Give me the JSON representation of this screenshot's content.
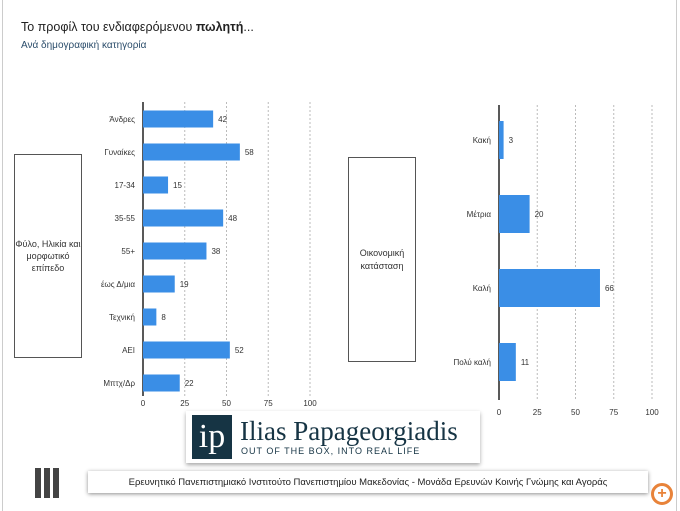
{
  "header": {
    "title_prefix": "Το προφίλ του ενδιαφερόμενου ",
    "title_bold": "πωλητή",
    "title_suffix": "...",
    "subtitle": "Ανά δημογραφική κατηγορία"
  },
  "chart_data": [
    {
      "type": "bar",
      "orientation": "horizontal",
      "group_label": "Φύλο, Ηλικία και μορφωτικό επίπεδο",
      "categories": [
        "Άνδρες",
        "Γυναίκες",
        "17-34",
        "35-55",
        "55+",
        "έως Δ/μια",
        "Τεχνική",
        "ΑΕΙ",
        "Μπτχ/Δρ"
      ],
      "values": [
        42,
        58,
        15,
        48,
        38,
        19,
        8,
        52,
        22
      ],
      "xlim": [
        0,
        100
      ],
      "xticks": [
        "0",
        "25",
        "50",
        "75",
        "100"
      ],
      "grid": true,
      "color": "#3a8ee6"
    },
    {
      "type": "bar",
      "orientation": "horizontal",
      "group_label": "Οικονομική κατάσταση",
      "categories": [
        "Κακή",
        "Μέτρια",
        "Καλή",
        "Πολύ καλή"
      ],
      "values": [
        3,
        20,
        66,
        11
      ],
      "xlim": [
        0,
        100
      ],
      "xticks": [
        "0",
        "25",
        "50",
        "75",
        "100"
      ],
      "grid": true,
      "color": "#3a8ee6"
    }
  ],
  "logo": {
    "mark": "ip",
    "name": "Ilias Papageorgiadis",
    "tagline": "OUT OF THE BOX, INTO REAL LIFE"
  },
  "footer": {
    "text": "Ερευνητικό Πανεπιστημιακό Ινστιτούτο Πανεπιστημίου Μακεδονίας - Μονάδα Ερευνών Κοινής Γνώμης και Αγοράς"
  },
  "icons": {
    "left": "bars-icon",
    "zoom": "zoom-in-icon"
  }
}
